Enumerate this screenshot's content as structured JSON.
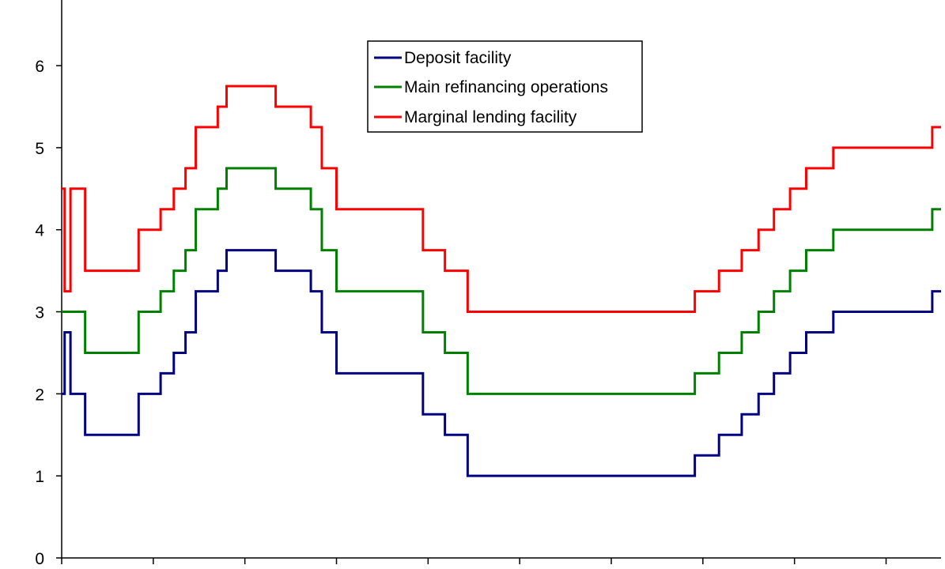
{
  "chart_data": {
    "type": "line",
    "step": true,
    "title": "",
    "xlabel": "",
    "ylabel": "",
    "ylim": [
      0,
      6.8
    ],
    "yticks": [
      0,
      1,
      2,
      3,
      4,
      5,
      6
    ],
    "xlim": [
      0,
      120
    ],
    "xticks": [
      0,
      12.5,
      25,
      37.5,
      50,
      62.5,
      75,
      87.5,
      100,
      112.5
    ],
    "grid": false,
    "legend_position": "top-center",
    "series": [
      {
        "name": "Deposit facility",
        "color": "#000080",
        "x": [
          0,
          0.4,
          1.2,
          3.2,
          10.5,
          13.5,
          15.3,
          16.9,
          18.3,
          21.3,
          22.5,
          29.2,
          30.4,
          34.0,
          35.5,
          35.8,
          37.5,
          49.3,
          52.3,
          55.4,
          86.4,
          89.7,
          92.8,
          95.1,
          97.2,
          99.4,
          101.6,
          105.3,
          116.5,
          118.8,
          120
        ],
        "values": [
          2.0,
          2.75,
          2.0,
          1.5,
          2.0,
          2.25,
          2.5,
          2.75,
          3.25,
          3.5,
          3.75,
          3.5,
          3.5,
          3.25,
          2.75,
          2.75,
          2.25,
          1.75,
          1.5,
          1.0,
          1.25,
          1.5,
          1.75,
          2.0,
          2.25,
          2.5,
          2.75,
          3.0,
          3.0,
          3.25,
          3.25
        ]
      },
      {
        "name": "Main refinancing operations",
        "color": "#008000",
        "x": [
          0,
          3.2,
          10.5,
          13.5,
          15.3,
          16.9,
          18.3,
          21.3,
          22.5,
          29.2,
          34.0,
          35.5,
          37.5,
          49.3,
          52.3,
          55.4,
          86.4,
          89.7,
          92.8,
          95.1,
          97.2,
          99.4,
          101.6,
          105.3,
          116.5,
          118.8,
          120
        ],
        "values": [
          3.0,
          2.5,
          3.0,
          3.25,
          3.5,
          3.75,
          4.25,
          4.5,
          4.75,
          4.5,
          4.25,
          3.75,
          3.25,
          2.75,
          2.5,
          2.0,
          2.25,
          2.5,
          2.75,
          3.0,
          3.25,
          3.5,
          3.75,
          4.0,
          4.0,
          4.25,
          4.25
        ]
      },
      {
        "name": "Marginal lending facility",
        "color": "#ff0000",
        "x": [
          0,
          0.4,
          1.2,
          3.2,
          10.5,
          13.5,
          15.3,
          16.9,
          18.3,
          21.3,
          22.5,
          29.2,
          34.0,
          35.5,
          37.5,
          49.3,
          52.3,
          55.4,
          86.4,
          89.7,
          92.8,
          95.1,
          97.2,
          99.4,
          101.6,
          105.3,
          116.5,
          118.8,
          120
        ],
        "values": [
          4.5,
          3.25,
          4.5,
          3.5,
          4.0,
          4.25,
          4.5,
          4.75,
          5.25,
          5.5,
          5.75,
          5.5,
          5.25,
          4.75,
          4.25,
          3.75,
          3.5,
          3.0,
          3.25,
          3.5,
          3.75,
          4.0,
          4.25,
          4.5,
          4.75,
          5.0,
          5.0,
          5.25,
          5.25
        ]
      }
    ]
  }
}
